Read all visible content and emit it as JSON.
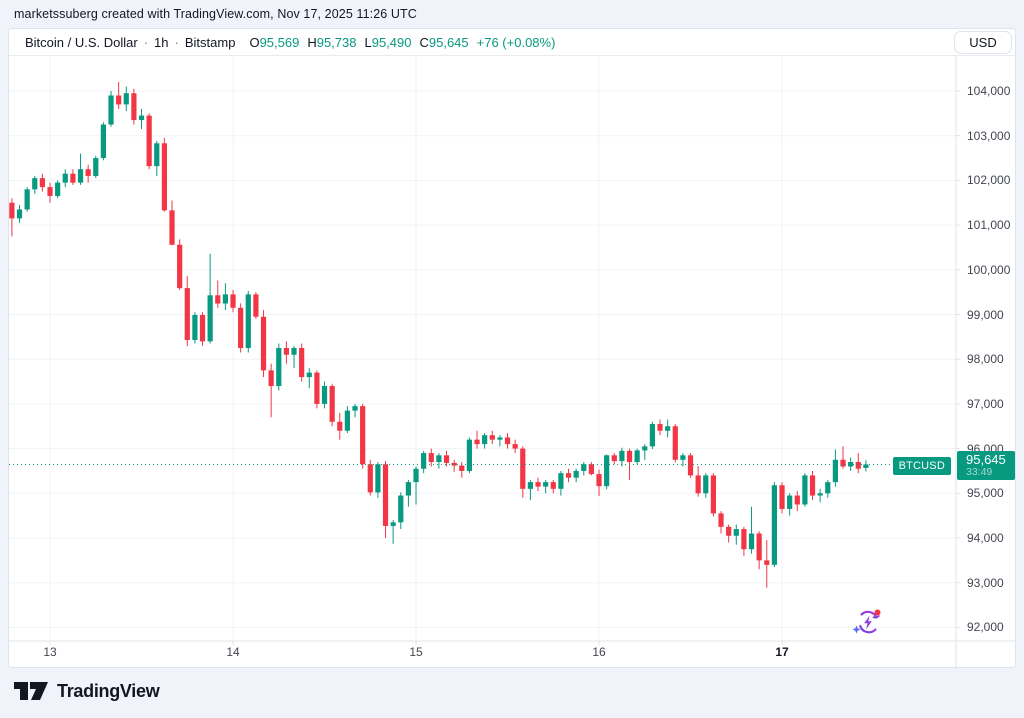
{
  "attribution": "marketssuberg created with TradingView.com, Nov 17, 2025 11:26 UTC",
  "header": {
    "symbol_title": "Bitcoin / U.S. Dollar",
    "separator": "·",
    "interval": "1h",
    "exchange": "Bitstamp",
    "ohlc": {
      "open_label": "O",
      "open": "95,569",
      "high_label": "H",
      "high": "95,738",
      "low_label": "L",
      "low": "95,490",
      "close_label": "C",
      "close": "95,645",
      "change": "+76 (+0.08%)"
    },
    "currency_button": "USD"
  },
  "price_line": {
    "symbol_label": "BTCUSD",
    "price": "95,645",
    "price_value": 95645,
    "countdown": "33:49"
  },
  "logo": {
    "text": "TradingView"
  },
  "colors": {
    "up": "#089981",
    "down": "#F23645",
    "accent": "#089981",
    "grid": "#F0F3FA",
    "axis_text": "#434651",
    "text": "#131722",
    "panel_border": "#E0E3EB",
    "label_bg": "#089981",
    "ai_purple": "#8E24AA",
    "ai_violet": "#673AB7",
    "ai_red": "#F23645",
    "ai_blue": "#536DFE",
    "page_bg": "#F0F3FA"
  },
  "chart_data": {
    "type": "candlestick",
    "title": "Bitcoin / U.S. Dollar",
    "symbol": "BTCUSD",
    "interval": "1h",
    "exchange": "Bitstamp",
    "legend_position": "top-left",
    "grid": true,
    "y_axis": {
      "min": 92000,
      "max": 104000,
      "tick_step": 1000
    },
    "price_ticks": [
      {
        "price": 104000,
        "label": "104,000"
      },
      {
        "price": 103000,
        "label": "103,000"
      },
      {
        "price": 102000,
        "label": "102,000"
      },
      {
        "price": 101000,
        "label": "101,000"
      },
      {
        "price": 100000,
        "label": "100,000"
      },
      {
        "price": 99000,
        "label": "99,000"
      },
      {
        "price": 98000,
        "label": "98,000"
      },
      {
        "price": 97000,
        "label": "97,000"
      },
      {
        "price": 96000,
        "label": "96,000"
      },
      {
        "price": 95000,
        "label": "95,000"
      },
      {
        "price": 94000,
        "label": "94,000"
      },
      {
        "price": 93000,
        "label": "93,000"
      },
      {
        "price": 92000,
        "label": "92,000"
      }
    ],
    "time_ticks": [
      {
        "label": "13",
        "candle_index": 5,
        "bold": false
      },
      {
        "label": "14",
        "candle_index": 29,
        "bold": false
      },
      {
        "label": "15",
        "candle_index": 53,
        "bold": false
      },
      {
        "label": "16",
        "candle_index": 77,
        "bold": false
      },
      {
        "label": "17",
        "candle_index": 101,
        "bold": true
      }
    ],
    "current_price": 95645,
    "last_bar": {
      "open": 95569,
      "high": 95738,
      "low": 95490,
      "close": 95645
    },
    "candles_format": [
      "open",
      "high",
      "low",
      "close"
    ],
    "candles": [
      [
        101500,
        101600,
        100750,
        101150
      ],
      [
        101150,
        101450,
        101050,
        101350
      ],
      [
        101350,
        101850,
        101300,
        101800
      ],
      [
        101800,
        102100,
        101700,
        102050
      ],
      [
        102050,
        102150,
        101750,
        101850
      ],
      [
        101850,
        101950,
        101500,
        101650
      ],
      [
        101650,
        102000,
        101600,
        101950
      ],
      [
        101950,
        102250,
        101850,
        102150
      ],
      [
        102150,
        102250,
        101900,
        101950
      ],
      [
        101950,
        102600,
        101900,
        102250
      ],
      [
        102250,
        102350,
        101950,
        102100
      ],
      [
        102100,
        102550,
        102050,
        102500
      ],
      [
        102500,
        103300,
        102450,
        103250
      ],
      [
        103250,
        104000,
        103200,
        103900
      ],
      [
        103900,
        104200,
        103600,
        103700
      ],
      [
        103700,
        104100,
        103550,
        103950
      ],
      [
        103950,
        104050,
        103250,
        103350
      ],
      [
        103350,
        103600,
        103150,
        103450
      ],
      [
        103450,
        103500,
        102250,
        102320
      ],
      [
        102320,
        102880,
        102100,
        102830
      ],
      [
        102830,
        102950,
        101300,
        101330
      ],
      [
        101330,
        101550,
        100550,
        100560
      ],
      [
        100560,
        100680,
        99550,
        99590
      ],
      [
        99590,
        99860,
        98290,
        98430
      ],
      [
        98430,
        99050,
        98350,
        98990
      ],
      [
        98990,
        99050,
        98300,
        98400
      ],
      [
        98400,
        100360,
        98350,
        99430
      ],
      [
        99430,
        99760,
        99150,
        99245
      ],
      [
        99245,
        99700,
        99100,
        99450
      ],
      [
        99450,
        99550,
        99050,
        99150
      ],
      [
        99150,
        99250,
        98150,
        98250
      ],
      [
        98250,
        99530,
        98150,
        99450
      ],
      [
        99450,
        99500,
        98900,
        98950
      ],
      [
        98950,
        99100,
        97600,
        97750
      ],
      [
        97750,
        97900,
        96700,
        97400
      ],
      [
        97400,
        98350,
        97300,
        98250
      ],
      [
        98250,
        98400,
        97900,
        98100
      ],
      [
        98100,
        98300,
        97800,
        98250
      ],
      [
        98250,
        98350,
        97500,
        97600
      ],
      [
        97600,
        97800,
        97350,
        97700
      ],
      [
        97700,
        97750,
        96900,
        97000
      ],
      [
        97000,
        97500,
        96900,
        97400
      ],
      [
        97400,
        97450,
        96500,
        96600
      ],
      [
        96600,
        96800,
        96200,
        96400
      ],
      [
        96400,
        96950,
        96350,
        96850
      ],
      [
        96850,
        97000,
        96700,
        96950
      ],
      [
        96950,
        97000,
        95550,
        95650
      ],
      [
        95650,
        95750,
        94950,
        95020
      ],
      [
        95020,
        95700,
        94900,
        95650
      ],
      [
        95650,
        95720,
        94000,
        94270
      ],
      [
        94270,
        94400,
        93870,
        94350
      ],
      [
        94350,
        95020,
        94200,
        94950
      ],
      [
        94950,
        95300,
        94700,
        95250
      ],
      [
        95250,
        95600,
        94750,
        95550
      ],
      [
        95550,
        95950,
        95450,
        95900
      ],
      [
        95900,
        96000,
        95600,
        95700
      ],
      [
        95700,
        95900,
        95550,
        95850
      ],
      [
        95850,
        95950,
        95600,
        95680
      ],
      [
        95680,
        95750,
        95480,
        95620
      ],
      [
        95620,
        95700,
        95350,
        95500
      ],
      [
        95500,
        96250,
        95450,
        96200
      ],
      [
        96200,
        96400,
        96000,
        96100
      ],
      [
        96100,
        96350,
        96000,
        96300
      ],
      [
        96300,
        96400,
        96100,
        96200
      ],
      [
        96200,
        96300,
        96050,
        96250
      ],
      [
        96250,
        96350,
        96000,
        96100
      ],
      [
        96100,
        96200,
        95900,
        96000
      ],
      [
        96000,
        96050,
        94900,
        95100
      ],
      [
        95100,
        95300,
        94850,
        95250
      ],
      [
        95250,
        95350,
        95050,
        95150
      ],
      [
        95150,
        95300,
        95000,
        95250
      ],
      [
        95250,
        95300,
        95000,
        95100
      ],
      [
        95100,
        95500,
        94950,
        95450
      ],
      [
        95450,
        95550,
        95250,
        95350
      ],
      [
        95350,
        95550,
        95250,
        95500
      ],
      [
        95500,
        95700,
        95400,
        95650
      ],
      [
        95650,
        95700,
        95400,
        95430
      ],
      [
        95430,
        95530,
        94940,
        95160
      ],
      [
        95160,
        95870,
        95090,
        95850
      ],
      [
        95850,
        95900,
        95650,
        95720
      ],
      [
        95720,
        96020,
        95600,
        95950
      ],
      [
        95950,
        96000,
        95300,
        95700
      ],
      [
        95700,
        96000,
        95650,
        95960
      ],
      [
        95960,
        96100,
        95750,
        96050
      ],
      [
        96050,
        96600,
        95990,
        96550
      ],
      [
        96550,
        96650,
        96300,
        96400
      ],
      [
        96400,
        96650,
        96250,
        96500
      ],
      [
        96500,
        96550,
        95690,
        95750
      ],
      [
        95750,
        95900,
        95600,
        95850
      ],
      [
        95850,
        95900,
        95345,
        95400
      ],
      [
        95400,
        95610,
        94925,
        95000
      ],
      [
        95000,
        95450,
        94900,
        95400
      ],
      [
        95400,
        95450,
        94480,
        94550
      ],
      [
        94550,
        94600,
        94100,
        94250
      ],
      [
        94250,
        94300,
        93900,
        94050
      ],
      [
        94050,
        94300,
        93850,
        94200
      ],
      [
        94200,
        94250,
        93600,
        93750
      ],
      [
        93750,
        94700,
        93650,
        94100
      ],
      [
        94100,
        94150,
        93300,
        93500
      ],
      [
        93500,
        93950,
        92890,
        93400
      ],
      [
        93400,
        95250,
        93350,
        95180
      ],
      [
        95180,
        95250,
        94550,
        94650
      ],
      [
        94650,
        95000,
        94500,
        94950
      ],
      [
        94950,
        95050,
        94600,
        94750
      ],
      [
        94750,
        95450,
        94700,
        95400
      ],
      [
        95400,
        95500,
        94850,
        94950
      ],
      [
        94950,
        95100,
        94800,
        95000
      ],
      [
        95000,
        95300,
        94900,
        95250
      ],
      [
        95250,
        95980,
        95150,
        95750
      ],
      [
        95750,
        96050,
        95550,
        95600
      ],
      [
        95600,
        95800,
        95500,
        95700
      ],
      [
        95700,
        95900,
        95450,
        95550
      ],
      [
        95569,
        95738,
        95490,
        95645
      ]
    ]
  }
}
